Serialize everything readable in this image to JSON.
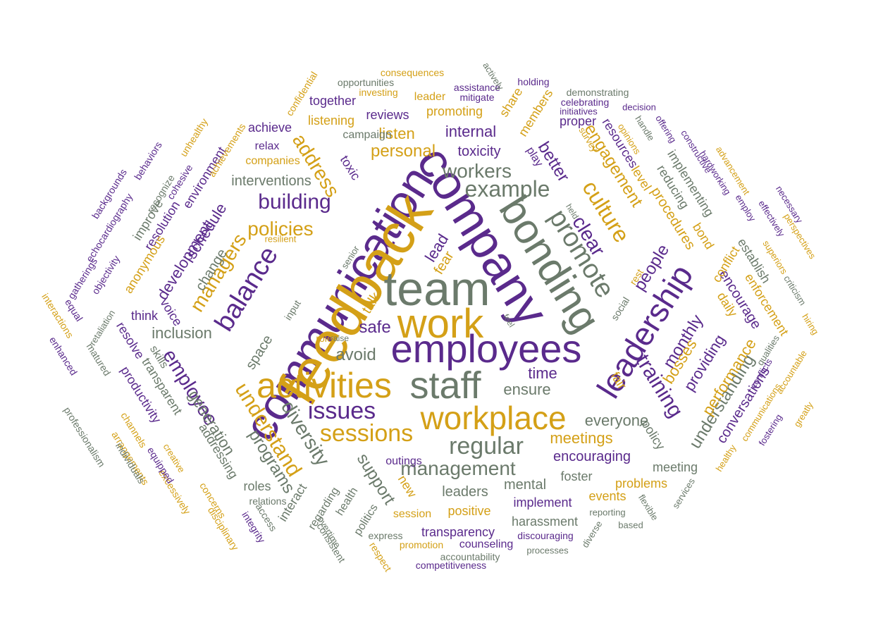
{
  "palette": {
    "purple": "#5a2a8c",
    "gold": "#d4a017",
    "gray": "#6b7a6b"
  },
  "words": [
    {
      "text": "communication",
      "color": "purple"
    },
    {
      "text": "company",
      "color": "purple"
    },
    {
      "text": "feedback",
      "color": "gold"
    },
    {
      "text": "team",
      "color": "gray"
    },
    {
      "text": "bonding",
      "color": "gray"
    },
    {
      "text": "work",
      "color": "gold"
    },
    {
      "text": "employees",
      "color": "purple"
    },
    {
      "text": "staff",
      "color": "gray"
    },
    {
      "text": "activities",
      "color": "gold"
    },
    {
      "text": "workplace",
      "color": "gold"
    },
    {
      "text": "leadership",
      "color": "purple"
    },
    {
      "text": "promote",
      "color": "gray"
    },
    {
      "text": "example",
      "color": "gray"
    },
    {
      "text": "workers",
      "color": "gray"
    },
    {
      "text": "culture",
      "color": "gold"
    },
    {
      "text": "clear",
      "color": "purple"
    },
    {
      "text": "balance",
      "color": "purple"
    },
    {
      "text": "issues",
      "color": "purple"
    },
    {
      "text": "sessions",
      "color": "gold"
    },
    {
      "text": "regular",
      "color": "gray"
    },
    {
      "text": "management",
      "color": "gray"
    },
    {
      "text": "understand",
      "color": "gold"
    },
    {
      "text": "diversity",
      "color": "gray"
    },
    {
      "text": "training",
      "color": "purple"
    },
    {
      "text": "employee",
      "color": "purple"
    },
    {
      "text": "building",
      "color": "purple"
    },
    {
      "text": "policies",
      "color": "gold"
    },
    {
      "text": "managers",
      "color": "gold"
    },
    {
      "text": "address",
      "color": "gold"
    },
    {
      "text": "personal",
      "color": "gold"
    },
    {
      "text": "engagement",
      "color": "gold"
    },
    {
      "text": "better",
      "color": "purple"
    },
    {
      "text": "internal",
      "color": "purple"
    },
    {
      "text": "toxicity",
      "color": "purple"
    },
    {
      "text": "listen",
      "color": "gold"
    },
    {
      "text": "people",
      "color": "purple"
    },
    {
      "text": "monthly",
      "color": "purple"
    },
    {
      "text": "encourage",
      "color": "purple"
    },
    {
      "text": "procedures",
      "color": "gold"
    },
    {
      "text": "understanding",
      "color": "gray"
    },
    {
      "text": "performance",
      "color": "gold"
    },
    {
      "text": "providing",
      "color": "purple"
    },
    {
      "text": "bosses",
      "color": "gold"
    },
    {
      "text": "conversations",
      "color": "purple"
    },
    {
      "text": "everyone",
      "color": "gray"
    },
    {
      "text": "meetings",
      "color": "gold"
    },
    {
      "text": "encouraging",
      "color": "purple"
    },
    {
      "text": "support",
      "color": "gray"
    },
    {
      "text": "programs",
      "color": "gray"
    },
    {
      "text": "generation",
      "color": "gray"
    },
    {
      "text": "ensure",
      "color": "gray"
    },
    {
      "text": "time",
      "color": "purple"
    },
    {
      "text": "safe",
      "color": "purple"
    },
    {
      "text": "avoid",
      "color": "gray"
    },
    {
      "text": "talk",
      "color": "gold"
    },
    {
      "text": "fear",
      "color": "gold"
    },
    {
      "text": "lead",
      "color": "purple"
    },
    {
      "text": "space",
      "color": "gray"
    },
    {
      "text": "inclusion",
      "color": "gray"
    },
    {
      "text": "development",
      "color": "purple"
    },
    {
      "text": "schedule",
      "color": "purple"
    },
    {
      "text": "change",
      "color": "gray"
    },
    {
      "text": "interventions",
      "color": "gray"
    },
    {
      "text": "toxic",
      "color": "purple"
    },
    {
      "text": "mental",
      "color": "gray"
    },
    {
      "text": "leaders",
      "color": "gray"
    },
    {
      "text": "implement",
      "color": "purple"
    },
    {
      "text": "transparency",
      "color": "purple"
    },
    {
      "text": "harassment",
      "color": "gray"
    },
    {
      "text": "foster",
      "color": "gray"
    },
    {
      "text": "problems",
      "color": "gold"
    },
    {
      "text": "events",
      "color": "gold"
    },
    {
      "text": "meeting",
      "color": "gray"
    },
    {
      "text": "policy",
      "color": "gray"
    },
    {
      "text": "fair",
      "color": "gold"
    },
    {
      "text": "daily",
      "color": "gold"
    },
    {
      "text": "enforcement",
      "color": "gold"
    },
    {
      "text": "establish",
      "color": "gray"
    },
    {
      "text": "conflict",
      "color": "gold"
    },
    {
      "text": "bond",
      "color": "gold"
    },
    {
      "text": "reducing",
      "color": "gray"
    },
    {
      "text": "implementing",
      "color": "gray"
    },
    {
      "text": "level",
      "color": "gold"
    },
    {
      "text": "resources",
      "color": "purple"
    },
    {
      "text": "proper",
      "color": "purple"
    },
    {
      "text": "play",
      "color": "purple"
    },
    {
      "text": "members",
      "color": "gold"
    },
    {
      "text": "share",
      "color": "gold"
    },
    {
      "text": "promoting",
      "color": "gold"
    },
    {
      "text": "reviews",
      "color": "purple"
    },
    {
      "text": "listening",
      "color": "gold"
    },
    {
      "text": "together",
      "color": "purple"
    },
    {
      "text": "campaign",
      "color": "gray"
    },
    {
      "text": "achieve",
      "color": "purple"
    },
    {
      "text": "relax",
      "color": "purple"
    },
    {
      "text": "companies",
      "color": "gold"
    },
    {
      "text": "environment",
      "color": "purple"
    },
    {
      "text": "resolution",
      "color": "purple"
    },
    {
      "text": "improve",
      "color": "gray"
    },
    {
      "text": "anonymous",
      "color": "gold"
    },
    {
      "text": "think",
      "color": "purple"
    },
    {
      "text": "voice",
      "color": "purple"
    },
    {
      "text": "resolve",
      "color": "purple"
    },
    {
      "text": "skills",
      "color": "gray"
    },
    {
      "text": "transparent",
      "color": "gray"
    },
    {
      "text": "productivity",
      "color": "purple"
    },
    {
      "text": "addressing",
      "color": "gray"
    },
    {
      "text": "roles",
      "color": "gray"
    },
    {
      "text": "interact",
      "color": "gray"
    },
    {
      "text": "regarding",
      "color": "gray"
    },
    {
      "text": "health",
      "color": "gray"
    },
    {
      "text": "politics",
      "color": "gray"
    },
    {
      "text": "new",
      "color": "gold"
    },
    {
      "text": "positive",
      "color": "gold"
    },
    {
      "text": "session",
      "color": "gold"
    },
    {
      "text": "outings",
      "color": "purple"
    },
    {
      "text": "counseling",
      "color": "purple"
    },
    {
      "text": "promotion",
      "color": "gold"
    },
    {
      "text": "discouraging",
      "color": "purple"
    },
    {
      "text": "accountability",
      "color": "gray"
    },
    {
      "text": "competitiveness",
      "color": "purple"
    },
    {
      "text": "express",
      "color": "gray"
    },
    {
      "text": "respect",
      "color": "gold"
    },
    {
      "text": "consistent",
      "color": "gray"
    },
    {
      "text": "overtime",
      "color": "gray"
    },
    {
      "text": "integrity",
      "color": "purple"
    },
    {
      "text": "access",
      "color": "gray"
    },
    {
      "text": "relations",
      "color": "gray"
    },
    {
      "text": "disciplinary",
      "color": "gold"
    },
    {
      "text": "concerns",
      "color": "gold"
    },
    {
      "text": "excessively",
      "color": "gold"
    },
    {
      "text": "equipped",
      "color": "purple"
    },
    {
      "text": "creative",
      "color": "gold"
    },
    {
      "text": "channels",
      "color": "gold"
    },
    {
      "text": "arrangements",
      "color": "gold"
    },
    {
      "text": "individuals",
      "color": "gray"
    },
    {
      "text": "professionalism",
      "color": "gray"
    },
    {
      "text": "enhanced",
      "color": "purple"
    },
    {
      "text": "matured",
      "color": "gray"
    },
    {
      "text": "retaliation",
      "color": "gray"
    },
    {
      "text": "equal",
      "color": "purple"
    },
    {
      "text": "interactions",
      "color": "gold"
    },
    {
      "text": "objectivity",
      "color": "purple"
    },
    {
      "text": "gatherings",
      "color": "purple"
    },
    {
      "text": "echocardiography",
      "color": "purple"
    },
    {
      "text": "backgrounds",
      "color": "purple"
    },
    {
      "text": "behaviors",
      "color": "purple"
    },
    {
      "text": "recognize",
      "color": "gray"
    },
    {
      "text": "cohesive",
      "color": "purple"
    },
    {
      "text": "unhealthy",
      "color": "gold"
    },
    {
      "text": "achievements",
      "color": "gold"
    },
    {
      "text": "confidential",
      "color": "gold"
    },
    {
      "text": "consequences",
      "color": "gold"
    },
    {
      "text": "opportunities",
      "color": "gray"
    },
    {
      "text": "investing",
      "color": "gold"
    },
    {
      "text": "leader",
      "color": "gold"
    },
    {
      "text": "assistance",
      "color": "purple"
    },
    {
      "text": "mitigate",
      "color": "purple"
    },
    {
      "text": "actively",
      "color": "gray"
    },
    {
      "text": "holding",
      "color": "purple"
    },
    {
      "text": "demonstrating",
      "color": "gray"
    },
    {
      "text": "celebrating",
      "color": "purple"
    },
    {
      "text": "initiatives",
      "color": "purple"
    },
    {
      "text": "decision",
      "color": "purple"
    },
    {
      "text": "handle",
      "color": "gray"
    },
    {
      "text": "offering",
      "color": "purple"
    },
    {
      "text": "constructive",
      "color": "purple"
    },
    {
      "text": "hardworking",
      "color": "purple"
    },
    {
      "text": "advancement",
      "color": "gold"
    },
    {
      "text": "necessary",
      "color": "purple"
    },
    {
      "text": "employ",
      "color": "purple"
    },
    {
      "text": "effectively",
      "color": "purple"
    },
    {
      "text": "perspectives",
      "color": "gold"
    },
    {
      "text": "superiors",
      "color": "gold"
    },
    {
      "text": "criticism",
      "color": "gray"
    },
    {
      "text": "hiring",
      "color": "gold"
    },
    {
      "text": "qualities",
      "color": "gray"
    },
    {
      "text": "conflicts",
      "color": "purple"
    },
    {
      "text": "accountable",
      "color": "gold"
    },
    {
      "text": "communications",
      "color": "gold"
    },
    {
      "text": "greatly",
      "color": "gold"
    },
    {
      "text": "fostering",
      "color": "purple"
    },
    {
      "text": "healthy",
      "color": "gold"
    },
    {
      "text": "services",
      "color": "gray"
    },
    {
      "text": "flexible",
      "color": "gray"
    },
    {
      "text": "based",
      "color": "gray"
    },
    {
      "text": "diverse",
      "color": "gray"
    },
    {
      "text": "reporting",
      "color": "gray"
    },
    {
      "text": "processes",
      "color": "gray"
    },
    {
      "text": "survey",
      "color": "gold"
    },
    {
      "text": "opinions",
      "color": "gold"
    },
    {
      "text": "held",
      "color": "gray"
    },
    {
      "text": "rest",
      "color": "gold"
    },
    {
      "text": "social",
      "color": "gray"
    },
    {
      "text": "feel",
      "color": "gray"
    },
    {
      "text": "input",
      "color": "gray"
    },
    {
      "text": "raise",
      "color": "gray"
    },
    {
      "text": "role",
      "color": "gold"
    },
    {
      "text": "senior",
      "color": "gray"
    },
    {
      "text": "resilient",
      "color": "gold"
    }
  ]
}
